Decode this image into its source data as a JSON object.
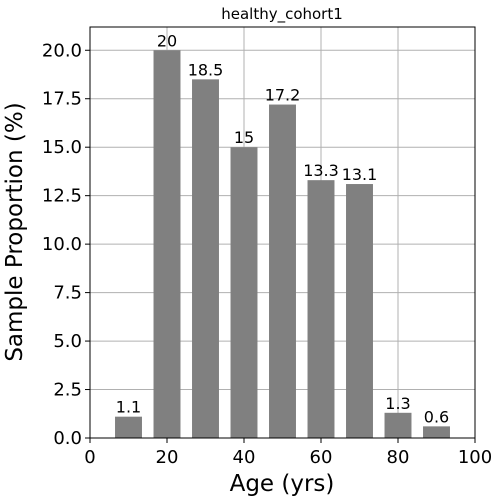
{
  "chart_data": {
    "type": "bar",
    "title": "healthy_cohort1",
    "xlabel": "Age (yrs)",
    "ylabel": "Sample Proportion (%)",
    "xlim": [
      0,
      100
    ],
    "ylim": [
      0,
      21.2
    ],
    "x": [
      10,
      20,
      30,
      40,
      50,
      60,
      70,
      80,
      90
    ],
    "values": [
      1.1,
      20,
      18.5,
      15,
      17.2,
      13.3,
      13.1,
      1.3,
      0.6
    ],
    "value_labels": [
      "1.1",
      "20",
      "18.5",
      "15",
      "17.2",
      "13.3",
      "13.1",
      "1.3",
      "0.6"
    ],
    "bar_width": 7,
    "x_ticks": [
      0,
      20,
      40,
      60,
      80,
      100
    ],
    "x_tick_labels": [
      "0",
      "20",
      "40",
      "60",
      "80",
      "100"
    ],
    "y_ticks": [
      0,
      2.5,
      5,
      7.5,
      10,
      12.5,
      15,
      17.5,
      20
    ],
    "y_tick_labels": [
      "0.0",
      "2.5",
      "5.0",
      "7.5",
      "10.0",
      "12.5",
      "15.0",
      "17.5",
      "20.0"
    ],
    "grid": true,
    "bar_color": "#808080",
    "grid_color": "#b0b0b0"
  }
}
